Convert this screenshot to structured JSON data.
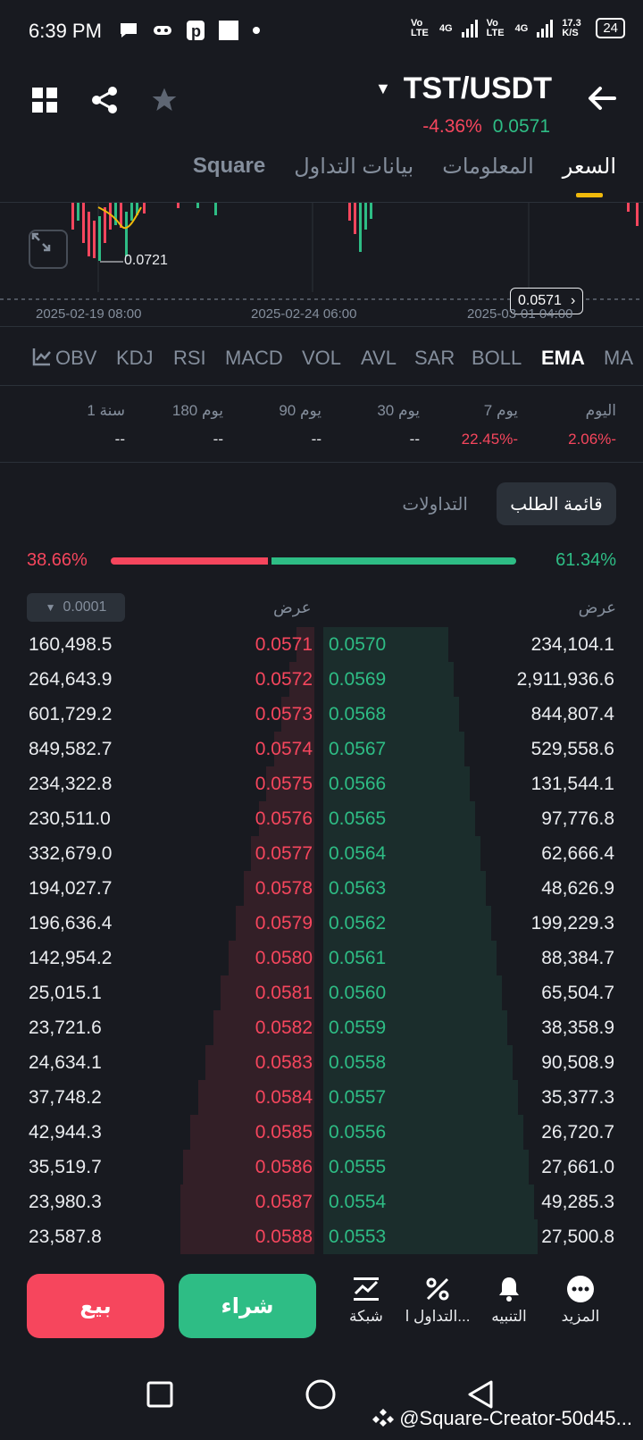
{
  "status_bar": {
    "time": "6:39 PM",
    "net1": "Vo LTE",
    "net2": "4G",
    "net3": "Vo LTE",
    "net4": "4G",
    "speed": "17.3 K/S",
    "battery": "24"
  },
  "header": {
    "pair": "TST/USDT",
    "change_pct": "-4.36%",
    "last_price": "0.0571"
  },
  "tabs": [
    "السعر",
    "المعلومات",
    "بيانات التداول",
    "Square"
  ],
  "active_tab": "السعر",
  "chart": {
    "low_label": "0.0721",
    "current_price": "0.0571",
    "dates": [
      "2025-02-19 08:00",
      "2025-02-24 06:00",
      "2025-03-01 04:00"
    ]
  },
  "indicators": [
    "MA",
    "EMA",
    "BOLL",
    "SAR",
    "AVL",
    "VOL",
    "MACD",
    "RSI",
    "KDJ",
    "OBV"
  ],
  "active_indicator": "EMA",
  "performance": {
    "labels": [
      "اليوم",
      "7 يوم",
      "30 يوم",
      "90 يوم",
      "180 يوم",
      "1 سنة"
    ],
    "values": [
      "2.06%-",
      "22.45%-",
      "--",
      "--",
      "--",
      "--"
    ]
  },
  "orderbook_tabs": {
    "active": "قائمة الطلب",
    "other": "التداولات"
  },
  "ratio": {
    "sell_pct": "38.66%",
    "buy_pct": "61.34%",
    "sell_fraction": 0.3866
  },
  "orderbook_header": {
    "precision": "0.0001",
    "col_left": "عرض",
    "col_right": "عرض"
  },
  "orderbook": {
    "asks": [
      {
        "qty": "160,498.5",
        "price": "0.0571"
      },
      {
        "qty": "264,643.9",
        "price": "0.0572"
      },
      {
        "qty": "601,729.2",
        "price": "0.0573"
      },
      {
        "qty": "849,582.7",
        "price": "0.0574"
      },
      {
        "qty": "234,322.8",
        "price": "0.0575"
      },
      {
        "qty": "230,511.0",
        "price": "0.0576"
      },
      {
        "qty": "332,679.0",
        "price": "0.0577"
      },
      {
        "qty": "194,027.7",
        "price": "0.0578"
      },
      {
        "qty": "196,636.4",
        "price": "0.0579"
      },
      {
        "qty": "142,954.2",
        "price": "0.0580"
      },
      {
        "qty": "25,015.1",
        "price": "0.0581"
      },
      {
        "qty": "23,721.6",
        "price": "0.0582"
      },
      {
        "qty": "24,634.1",
        "price": "0.0583"
      },
      {
        "qty": "37,748.2",
        "price": "0.0584"
      },
      {
        "qty": "42,944.3",
        "price": "0.0585"
      },
      {
        "qty": "35,519.7",
        "price": "0.0586"
      },
      {
        "qty": "23,980.3",
        "price": "0.0587"
      },
      {
        "qty": "23,587.8",
        "price": "0.0588"
      }
    ],
    "bids": [
      {
        "price": "0.0570",
        "qty": "234,104.1"
      },
      {
        "price": "0.0569",
        "qty": "2,911,936.6"
      },
      {
        "price": "0.0568",
        "qty": "844,807.4"
      },
      {
        "price": "0.0567",
        "qty": "529,558.6"
      },
      {
        "price": "0.0566",
        "qty": "131,544.1"
      },
      {
        "price": "0.0565",
        "qty": "97,776.8"
      },
      {
        "price": "0.0564",
        "qty": "62,666.4"
      },
      {
        "price": "0.0563",
        "qty": "48,626.9"
      },
      {
        "price": "0.0562",
        "qty": "199,229.3"
      },
      {
        "price": "0.0561",
        "qty": "88,384.7"
      },
      {
        "price": "0.0560",
        "qty": "65,504.7"
      },
      {
        "price": "0.0559",
        "qty": "38,358.9"
      },
      {
        "price": "0.0558",
        "qty": "90,508.9"
      },
      {
        "price": "0.0557",
        "qty": "35,377.3"
      },
      {
        "price": "0.0556",
        "qty": "26,720.7"
      },
      {
        "price": "0.0555",
        "qty": "27,661.0"
      },
      {
        "price": "0.0554",
        "qty": "49,285.3"
      },
      {
        "price": "0.0553",
        "qty": "27,500.8"
      }
    ]
  },
  "bottom_bar": {
    "sell": "بيع",
    "buy": "شراء",
    "items": [
      "المزيد",
      "التنبيه",
      "التداول ا...",
      "شبكة"
    ]
  },
  "watermark": "@Square-Creator-50d45...",
  "colors": {
    "background": "#181a20",
    "red": "#f6465d",
    "green": "#2ebd85",
    "accent": "#f0b90b"
  }
}
